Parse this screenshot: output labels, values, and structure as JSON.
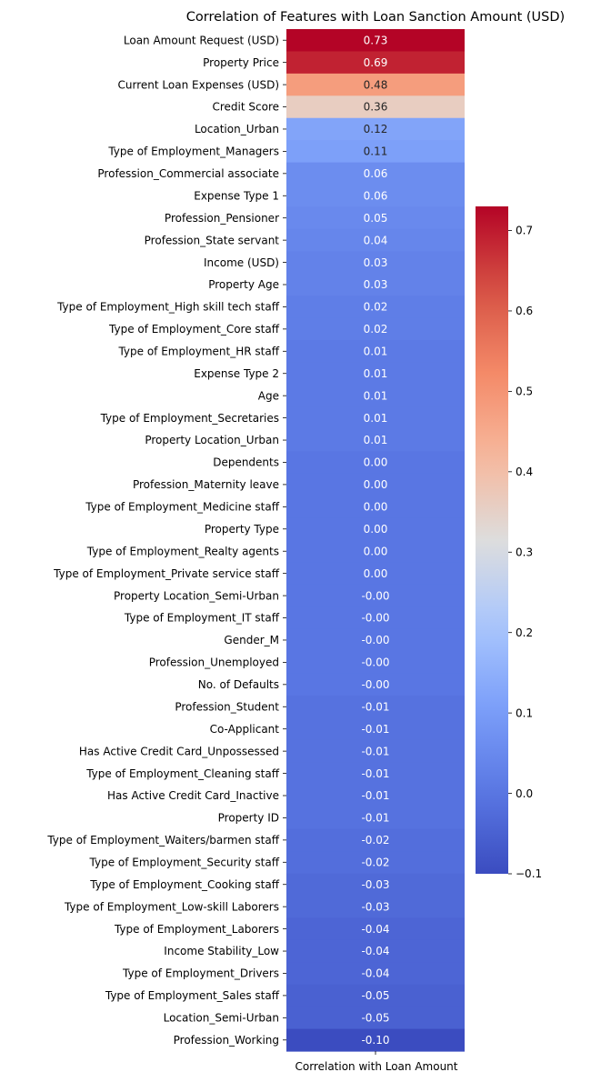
{
  "chart_data": {
    "type": "heatmap",
    "title": "Correlation of Features with Loan Sanction Amount (USD)",
    "xlabel": "Correlation with Loan Amount",
    "ylabel": "",
    "colormap": "coolwarm",
    "vmin": -0.1,
    "vmax": 0.73,
    "colorbar_ticks": [
      "0.7",
      "0.6",
      "0.5",
      "0.4",
      "0.3",
      "0.2",
      "0.1",
      "0.0",
      "−0.1"
    ],
    "colorbar_tick_values": [
      0.7,
      0.6,
      0.5,
      0.4,
      0.3,
      0.2,
      0.1,
      0.0,
      -0.1
    ],
    "legend": "colorbar-right",
    "rows": [
      {
        "label": "Loan Amount Request (USD)",
        "value": 0.73,
        "text": "0.73"
      },
      {
        "label": "Property Price",
        "value": 0.69,
        "text": "0.69"
      },
      {
        "label": "Current Loan Expenses (USD)",
        "value": 0.48,
        "text": "0.48"
      },
      {
        "label": "Credit Score",
        "value": 0.36,
        "text": "0.36"
      },
      {
        "label": "Location_Urban",
        "value": 0.12,
        "text": "0.12"
      },
      {
        "label": "Type of Employment_Managers",
        "value": 0.11,
        "text": "0.11"
      },
      {
        "label": "Profession_Commercial associate",
        "value": 0.06,
        "text": "0.06"
      },
      {
        "label": "Expense Type 1",
        "value": 0.06,
        "text": "0.06"
      },
      {
        "label": "Profession_Pensioner",
        "value": 0.05,
        "text": "0.05"
      },
      {
        "label": "Profession_State servant",
        "value": 0.04,
        "text": "0.04"
      },
      {
        "label": "Income (USD)",
        "value": 0.03,
        "text": "0.03"
      },
      {
        "label": "Property Age",
        "value": 0.03,
        "text": "0.03"
      },
      {
        "label": "Type of Employment_High skill tech staff",
        "value": 0.02,
        "text": "0.02"
      },
      {
        "label": "Type of Employment_Core staff",
        "value": 0.02,
        "text": "0.02"
      },
      {
        "label": "Type of Employment_HR staff",
        "value": 0.01,
        "text": "0.01"
      },
      {
        "label": "Expense Type 2",
        "value": 0.01,
        "text": "0.01"
      },
      {
        "label": "Age",
        "value": 0.01,
        "text": "0.01"
      },
      {
        "label": "Type of Employment_Secretaries",
        "value": 0.01,
        "text": "0.01"
      },
      {
        "label": "Property Location_Urban",
        "value": 0.01,
        "text": "0.01"
      },
      {
        "label": "Dependents",
        "value": 0.0,
        "text": "0.00"
      },
      {
        "label": "Profession_Maternity leave",
        "value": 0.0,
        "text": "0.00"
      },
      {
        "label": "Type of Employment_Medicine staff",
        "value": 0.0,
        "text": "0.00"
      },
      {
        "label": "Property Type",
        "value": 0.0,
        "text": "0.00"
      },
      {
        "label": "Type of Employment_Realty agents",
        "value": 0.0,
        "text": "0.00"
      },
      {
        "label": "Type of Employment_Private service staff",
        "value": 0.0,
        "text": "0.00"
      },
      {
        "label": "Property Location_Semi-Urban",
        "value": -0.0,
        "text": "-0.00"
      },
      {
        "label": "Type of Employment_IT staff",
        "value": -0.0,
        "text": "-0.00"
      },
      {
        "label": "Gender_M",
        "value": -0.0,
        "text": "-0.00"
      },
      {
        "label": "Profession_Unemployed",
        "value": -0.0,
        "text": "-0.00"
      },
      {
        "label": "No. of Defaults",
        "value": -0.0,
        "text": "-0.00"
      },
      {
        "label": "Profession_Student",
        "value": -0.01,
        "text": "-0.01"
      },
      {
        "label": "Co-Applicant",
        "value": -0.01,
        "text": "-0.01"
      },
      {
        "label": "Has Active Credit Card_Unpossessed",
        "value": -0.01,
        "text": "-0.01"
      },
      {
        "label": "Type of Employment_Cleaning staff",
        "value": -0.01,
        "text": "-0.01"
      },
      {
        "label": "Has Active Credit Card_Inactive",
        "value": -0.01,
        "text": "-0.01"
      },
      {
        "label": "Property ID",
        "value": -0.01,
        "text": "-0.01"
      },
      {
        "label": "Type of Employment_Waiters/barmen staff",
        "value": -0.02,
        "text": "-0.02"
      },
      {
        "label": "Type of Employment_Security staff",
        "value": -0.02,
        "text": "-0.02"
      },
      {
        "label": "Type of Employment_Cooking staff",
        "value": -0.03,
        "text": "-0.03"
      },
      {
        "label": "Type of Employment_Low-skill Laborers",
        "value": -0.03,
        "text": "-0.03"
      },
      {
        "label": "Type of Employment_Laborers",
        "value": -0.04,
        "text": "-0.04"
      },
      {
        "label": "Income Stability_Low",
        "value": -0.04,
        "text": "-0.04"
      },
      {
        "label": "Type of Employment_Drivers",
        "value": -0.04,
        "text": "-0.04"
      },
      {
        "label": "Type of Employment_Sales staff",
        "value": -0.05,
        "text": "-0.05"
      },
      {
        "label": "Location_Semi-Urban",
        "value": -0.05,
        "text": "-0.05"
      },
      {
        "label": "Profession_Working",
        "value": -0.1,
        "text": "-0.10"
      }
    ]
  }
}
